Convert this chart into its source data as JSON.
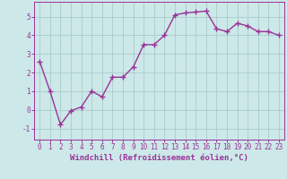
{
  "x": [
    0,
    1,
    2,
    3,
    4,
    5,
    6,
    7,
    8,
    9,
    10,
    11,
    12,
    13,
    14,
    15,
    16,
    17,
    18,
    19,
    20,
    21,
    22,
    23
  ],
  "y": [
    2.6,
    1.0,
    -0.8,
    -0.05,
    0.15,
    1.0,
    0.7,
    1.75,
    1.75,
    2.3,
    3.5,
    3.5,
    4.0,
    5.1,
    5.2,
    5.25,
    5.3,
    4.35,
    4.2,
    4.65,
    4.5,
    4.2,
    4.2,
    4.0
  ],
  "line_color": "#993399",
  "marker": "+",
  "marker_size": 4,
  "bg_color": "#cce8e8",
  "grid_color": "#aacccc",
  "xlabel": "Windchill (Refroidissement éolien,°C)",
  "xlabel_color": "#993399",
  "tick_color": "#993399",
  "spine_color": "#993399",
  "ylim": [
    -1.6,
    5.8
  ],
  "xlim": [
    -0.5,
    23.5
  ],
  "yticks": [
    -1,
    0,
    1,
    2,
    3,
    4,
    5
  ],
  "xticks": [
    0,
    1,
    2,
    3,
    4,
    5,
    6,
    7,
    8,
    9,
    10,
    11,
    12,
    13,
    14,
    15,
    16,
    17,
    18,
    19,
    20,
    21,
    22,
    23
  ],
  "tick_fontsize": 5.5,
  "xlabel_fontsize": 6.5,
  "linewidth": 1.0,
  "markeredgewidth": 1.0
}
